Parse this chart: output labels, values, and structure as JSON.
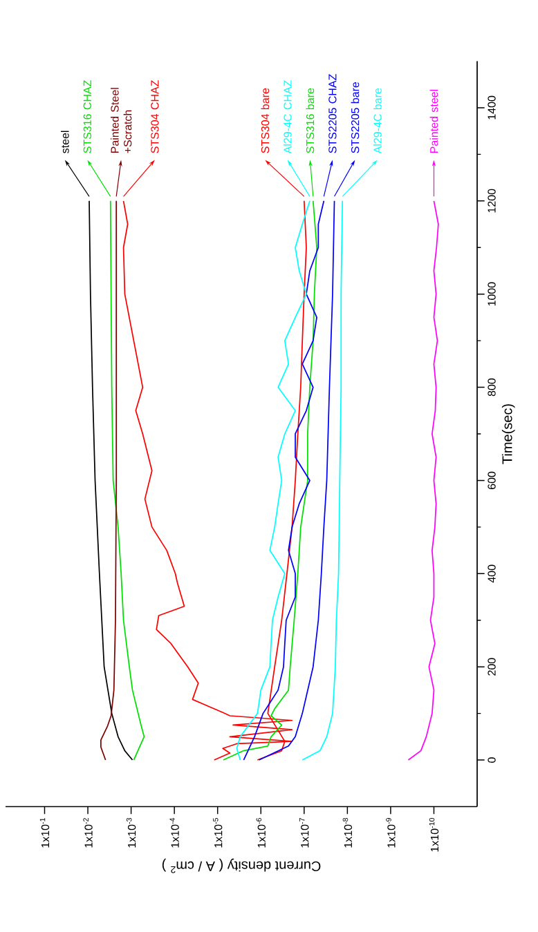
{
  "chart_data": {
    "type": "line",
    "xlabel": "Current density ( A / cm$^{2}$ )",
    "ylabel": "Time(sec)",
    "log": "x",
    "xlim": [
      0.8,
      1e-11
    ],
    "ylim": [
      -100,
      1500
    ],
    "yticks": [
      0,
      200,
      400,
      600,
      800,
      1000,
      1200,
      1400
    ],
    "xticks": [
      {
        "value": 0.1,
        "label": "1x10$^{-1}$"
      },
      {
        "value": 0.01,
        "label": "1x10$^{-2}$"
      },
      {
        "value": 0.001,
        "label": "1x10$^{-3}$"
      },
      {
        "value": 0.0001,
        "label": "1x10$^{-4}$"
      },
      {
        "value": 1e-05,
        "label": "1x10$^{-5}$"
      },
      {
        "value": 1e-06,
        "label": "1x10$^{-6}$"
      },
      {
        "value": 1e-07,
        "label": "1x10$^{-7}$"
      },
      {
        "value": 1e-08,
        "label": "1x10$^{-8}$"
      },
      {
        "value": 1e-09,
        "label": "1x10$^{-9}$"
      },
      {
        "value": 1e-10,
        "label": "1x10$^{-10}$"
      }
    ],
    "series": [
      {
        "name": "steel",
        "color": "#000000",
        "values": [
          0,
          20,
          50,
          100,
          200,
          400,
          600,
          800,
          1000,
          1200
        ],
        "x": [
          0.00093,
          0.0014,
          0.002,
          0.0028,
          0.0042,
          0.0054,
          0.0068,
          0.0078,
          0.0087,
          0.0093
        ]
      },
      {
        "name": "STS316 CHAZ",
        "color": "#00e000",
        "values": [
          0,
          50,
          75,
          150,
          200,
          300,
          400,
          500,
          600,
          800,
          1000,
          1200
        ],
        "x": [
          0.00087,
          0.0005,
          0.00059,
          0.00093,
          0.0011,
          0.0015,
          0.0017,
          0.002,
          0.0026,
          0.0028,
          0.0029,
          0.003
        ]
      },
      {
        "name": "Painted Steel +Scratch",
        "color": "#800000",
        "values": [
          0,
          28,
          43,
          73,
          95,
          150,
          300,
          600,
          1200
        ],
        "x": [
          0.0039,
          0.005,
          0.005,
          0.0035,
          0.0029,
          0.0025,
          0.0023,
          0.0022,
          0.0022
        ]
      },
      {
        "name": "STS304 CHAZ",
        "color": "#ff0000",
        "values": [
          0,
          15,
          25,
          35,
          40,
          50,
          65,
          75,
          85,
          95,
          102,
          130,
          165,
          200,
          250,
          280,
          310,
          330,
          380,
          400,
          450,
          500,
          560,
          621,
          700,
          750,
          800,
          900,
          1000,
          1100,
          1150,
          1200
        ],
        "x": [
          1.2e-05,
          5.2e-06,
          7.6e-06,
          3.6e-06,
          1.9e-07,
          5.2e-06,
          1.9e-07,
          4.4e-06,
          1.9e-07,
          5.2e-06,
          7.6e-06,
          3.8e-05,
          2.8e-05,
          4.9e-05,
          0.00012,
          0.00026,
          0.00023,
          5.9e-05,
          8.5e-05,
          9.5e-05,
          0.00015,
          0.00033,
          0.00048,
          0.00033,
          0.00054,
          0.00078,
          0.00054,
          0.00087,
          0.0014,
          0.0015,
          0.0012,
          0.0015
        ]
      },
      {
        "name": "STS304 bare",
        "color": "#ff0000",
        "values": [
          0,
          20,
          40,
          100,
          200,
          300,
          400,
          500,
          600,
          700,
          800,
          900,
          1000,
          1100,
          1200
        ],
        "x": [
          1.2e-06,
          3.3e-07,
          2.8e-07,
          6.9e-07,
          4.8e-07,
          3.3e-07,
          2.5e-07,
          1.9e-07,
          1.6e-07,
          1.4e-07,
          1.2e-07,
          1.1e-07,
          1e-07,
          8.9e-08,
          1e-07
        ]
      },
      {
        "name": "STS316 bare",
        "color": "#00e000",
        "values": [
          0,
          20,
          30,
          50,
          75,
          95,
          110,
          150,
          200,
          300,
          400,
          500,
          600,
          700,
          800,
          900,
          1000,
          1100,
          1200
        ],
        "x": [
          7.4e-06,
          2.5e-06,
          6.9e-07,
          5.8e-07,
          3.3e-07,
          5.8e-07,
          4.8e-07,
          2.3e-07,
          2.1e-07,
          1.7e-07,
          1.4e-07,
          1.2e-07,
          8.3e-08,
          8.3e-08,
          7.4e-08,
          6.2e-08,
          5.8e-08,
          5.1e-08,
          6.2e-08
        ]
      },
      {
        "name": "STS2205 CHAZ",
        "color": "#0000ff",
        "values": [
          0,
          50,
          100,
          150,
          200,
          250,
          300,
          350,
          400,
          450,
          500,
          550,
          600,
          650,
          700,
          750,
          800,
          850,
          900,
          950,
          1000,
          1050,
          1100,
          1150,
          1200
        ],
        "x": [
          2.5e-06,
          1.4e-06,
          8.9e-07,
          4e-07,
          3e-07,
          2.8e-07,
          2.6e-07,
          1.6e-07,
          1.6e-07,
          2.3e-07,
          1.9e-07,
          1.3e-07,
          7.4e-08,
          1.6e-07,
          1.6e-07,
          8.9e-08,
          6.2e-08,
          1.1e-07,
          6.2e-08,
          5.1e-08,
          8.9e-08,
          7.4e-08,
          4.7e-08,
          4.7e-08,
          3.5e-08
        ]
      },
      {
        "name": "STS2205 bare",
        "color": "#0000ff",
        "values": [
          0,
          30,
          50,
          100,
          200,
          300,
          400,
          500,
          600,
          800,
          1000,
          1200
        ],
        "x": [
          1.1e-06,
          2.3e-07,
          1.6e-07,
          1.1e-07,
          6.2e-08,
          4.7e-08,
          4e-08,
          3.5e-08,
          3e-08,
          2.6e-08,
          2.2e-08,
          2e-08
        ]
      },
      {
        "name": "Al29-4C bare",
        "color": "#00ffff",
        "values": [
          0,
          20,
          50,
          100,
          200,
          300,
          400,
          600,
          800,
          1000,
          1200
        ],
        "x": [
          1.1e-07,
          4.3e-08,
          3e-08,
          2.2e-08,
          1.9e-08,
          1.8e-08,
          1.6e-08,
          1.5e-08,
          1.4e-08,
          1.4e-08,
          1.3e-08
        ]
      },
      {
        "name": "Al29-4C CHAZ",
        "color": "#00ffff",
        "values": [
          0,
          25,
          50,
          100,
          150,
          200,
          250,
          300,
          350,
          400,
          450,
          500,
          550,
          600,
          650,
          700,
          750,
          800,
          850,
          900,
          950,
          1000,
          1050,
          1100,
          1150,
          1200
        ],
        "x": [
          3e-06,
          3.6e-06,
          3e-06,
          1.2e-06,
          1e-06,
          6.2e-07,
          5.8e-07,
          5.4e-07,
          4e-07,
          2.8e-07,
          6.2e-07,
          4.8e-07,
          4e-07,
          3.3e-07,
          4e-07,
          2.8e-07,
          1.6e-07,
          4e-07,
          2.3e-07,
          2.8e-07,
          1.6e-07,
          8.9e-08,
          1.3e-07,
          1.6e-07,
          1.1e-07,
          7.4e-08
        ]
      },
      {
        "name": "Painted steel",
        "color": "#ff00ff",
        "values": [
          0,
          20,
          50,
          100,
          150,
          200,
          250,
          300,
          350,
          400,
          450,
          500,
          550,
          600,
          650,
          700,
          750,
          800,
          850,
          900,
          950,
          1000,
          1050,
          1100,
          1150,
          1200
        ],
        "x": [
          3.9e-10,
          2e-10,
          1.5e-10,
          1.1e-10,
          1e-10,
          1.3e-10,
          9.5e-11,
          1.2e-10,
          1e-10,
          1e-10,
          1.1e-10,
          9.5e-11,
          8.9e-11,
          1e-10,
          8.9e-11,
          1.1e-10,
          9.3e-11,
          8.9e-11,
          1e-10,
          8.3e-11,
          1e-10,
          8.9e-11,
          1e-10,
          8.7e-11,
          7.9e-11,
          1e-10
        ]
      }
    ]
  }
}
